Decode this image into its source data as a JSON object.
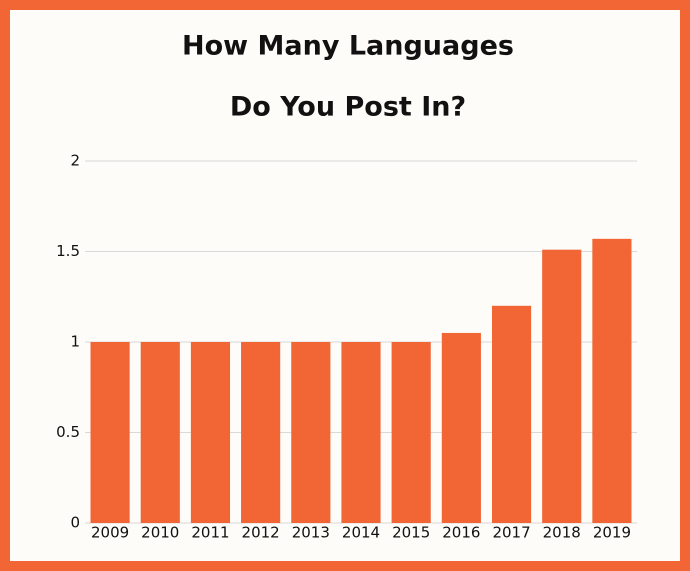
{
  "chart_data": {
    "type": "bar",
    "title": [
      "How Many Languages",
      "Do You Post In?"
    ],
    "categories": [
      "2009",
      "2010",
      "2011",
      "2012",
      "2013",
      "2014",
      "2015",
      "2016",
      "2017",
      "2018",
      "2019"
    ],
    "values": [
      1,
      1,
      1,
      1,
      1,
      1,
      1,
      1.05,
      1.2,
      1.51,
      1.57
    ],
    "color": "#f26535",
    "ylim": [
      0,
      2
    ],
    "yticks": [
      0,
      0.5,
      1,
      1.5,
      2
    ],
    "grid": true
  }
}
